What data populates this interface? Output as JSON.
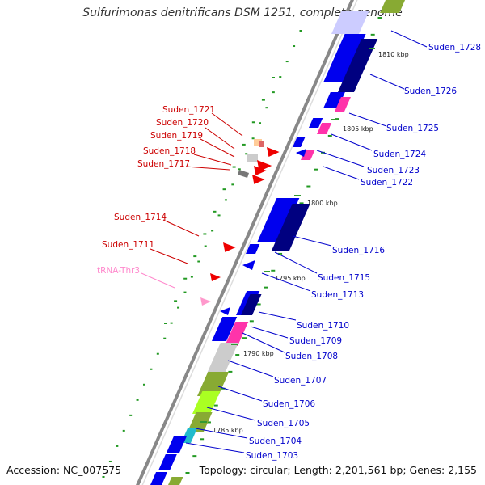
{
  "title": "Sulfurimonas denitrificans DSM 1251, complete genome",
  "footer": {
    "accession": "Accession: NC_007575",
    "summary": "Topology: circular; Length: 2,201,561 bp; Genes: 2,155"
  },
  "colors": {
    "backbone": "#888888",
    "plus_gene": "#0000ee",
    "plus_gene_dark": "#000080",
    "minus_gene": "#ee0000",
    "trna": "#ff99cc",
    "label_plus": "#0000cc",
    "label_minus": "#cc0000",
    "label_trna": "#ff88cc",
    "gc_tick": "#229922",
    "pink_feature": "#ff33aa",
    "olive_feature": "#88aa33",
    "lime_feature": "#aaff22",
    "cyan_feature": "#22bbcc",
    "grey_feature": "#cccccc"
  },
  "scale_labels": [
    "1810 kbp",
    "1805 kbp",
    "1800 kbp",
    "1795 kbp",
    "1790 kbp",
    "1785 kbp"
  ],
  "labels_plus": [
    "Suden_1728",
    "Suden_1726",
    "Suden_1725",
    "Suden_1724",
    "Suden_1723",
    "Suden_1722",
    "Suden_1716",
    "Suden_1715",
    "Suden_1713",
    "Suden_1710",
    "Suden_1709",
    "Suden_1708",
    "Suden_1707",
    "Suden_1706",
    "Suden_1705",
    "Suden_1704",
    "Suden_1703"
  ],
  "labels_minus": [
    "Suden_1721",
    "Suden_1720",
    "Suden_1719",
    "Suden_1718",
    "Suden_1717",
    "Suden_1714",
    "Suden_1711"
  ],
  "labels_trna": [
    "tRNA-Thr3"
  ]
}
